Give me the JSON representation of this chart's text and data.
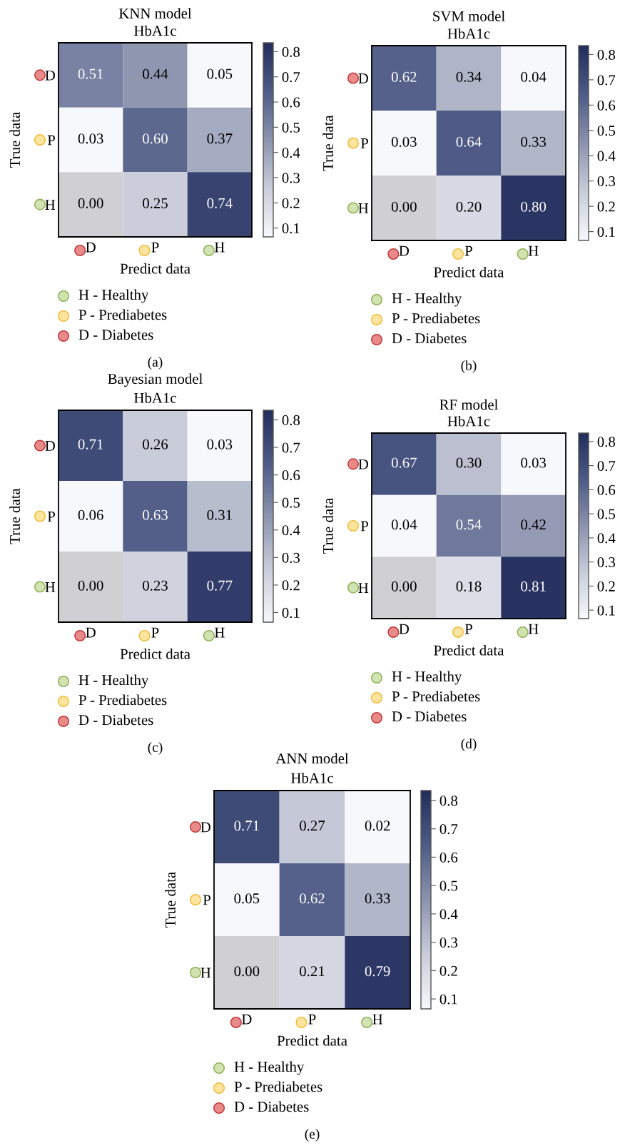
{
  "chart_data": [
    {
      "type": "heatmap",
      "title": "KNN model",
      "subtitle": "HbA1c",
      "xlabel": "Predict data",
      "ylabel": "True data",
      "categories": [
        "D",
        "P",
        "H"
      ],
      "y_categories": [
        "D",
        "P",
        "H"
      ],
      "cells": [
        [
          0.51,
          0.44,
          0.05
        ],
        [
          0.03,
          0.6,
          0.37
        ],
        [
          null,
          0.25,
          0.74
        ]
      ],
      "cell_labels": [
        [
          "0.51",
          "0.44",
          "0.05"
        ],
        [
          "0.03",
          "0.60",
          "0.37"
        ],
        [
          "0.00",
          "0.25",
          "0.74"
        ]
      ],
      "clim": [
        0.065,
        0.835
      ],
      "cticks": [
        0.1,
        0.2,
        0.3,
        0.4,
        0.5,
        0.6,
        0.7,
        0.8
      ],
      "annotations": [
        "H - Healthy",
        "P - Prediabetes",
        "D - Diabetes",
        "(a)"
      ]
    },
    {
      "type": "heatmap",
      "title": "SVM model",
      "subtitle": "HbA1c",
      "xlabel": "Predict data",
      "ylabel": "True data",
      "categories": [
        "D",
        "P",
        "H"
      ],
      "y_categories": [
        "D",
        "P",
        "H"
      ],
      "cells": [
        [
          0.62,
          0.34,
          0.04
        ],
        [
          0.03,
          0.64,
          0.33
        ],
        [
          null,
          0.2,
          0.8
        ]
      ],
      "cell_labels": [
        [
          "0.62",
          "0.34",
          "0.04"
        ],
        [
          "0.03",
          "0.64",
          "0.33"
        ],
        [
          "0.00",
          "0.20",
          "0.80"
        ]
      ],
      "clim": [
        0.065,
        0.835
      ],
      "cticks": [
        0.1,
        0.2,
        0.3,
        0.4,
        0.5,
        0.6,
        0.7,
        0.8
      ],
      "annotations": [
        "H - Healthy",
        "P - Prediabetes",
        "D - Diabetes",
        "(b)"
      ]
    },
    {
      "type": "heatmap",
      "title": "Bayesian model",
      "subtitle": "HbA1c",
      "xlabel": "Predict data",
      "ylabel": "True data",
      "categories": [
        "D",
        "P",
        "H"
      ],
      "y_categories": [
        "D",
        "P",
        "H"
      ],
      "cells": [
        [
          0.71,
          0.26,
          0.03
        ],
        [
          0.06,
          0.63,
          0.31
        ],
        [
          null,
          0.23,
          0.77
        ]
      ],
      "cell_labels": [
        [
          "0.71",
          "0.26",
          "0.03"
        ],
        [
          "0.06",
          "0.63",
          "0.31"
        ],
        [
          "0.00",
          "0.23",
          "0.77"
        ]
      ],
      "clim": [
        0.065,
        0.835
      ],
      "cticks": [
        0.1,
        0.2,
        0.3,
        0.4,
        0.5,
        0.6,
        0.7,
        0.8
      ],
      "annotations": [
        "H - Healthy",
        "P - Prediabetes",
        "D - Diabetes",
        "(c)"
      ]
    },
    {
      "type": "heatmap",
      "title": "RF model",
      "subtitle": "HbA1c",
      "xlabel": "Predict data",
      "ylabel": "True data",
      "categories": [
        "D",
        "P",
        "H"
      ],
      "y_categories": [
        "D",
        "P",
        "H"
      ],
      "cells": [
        [
          0.67,
          0.3,
          0.03
        ],
        [
          0.04,
          0.54,
          0.42
        ],
        [
          null,
          0.18,
          0.81
        ]
      ],
      "cell_labels": [
        [
          "0.67",
          "0.30",
          "0.03"
        ],
        [
          "0.04",
          "0.54",
          "0.42"
        ],
        [
          "0.00",
          "0.18",
          "0.81"
        ]
      ],
      "clim": [
        0.065,
        0.835
      ],
      "cticks": [
        0.1,
        0.2,
        0.3,
        0.4,
        0.5,
        0.6,
        0.7,
        0.8
      ],
      "annotations": [
        "H - Healthy",
        "P - Prediabetes",
        "D - Diabetes",
        "(d)"
      ]
    },
    {
      "type": "heatmap",
      "title": "ANN model",
      "subtitle": "HbA1c",
      "xlabel": "Predict data",
      "ylabel": "True data",
      "categories": [
        "D",
        "P",
        "H"
      ],
      "y_categories": [
        "D",
        "P",
        "H"
      ],
      "cells": [
        [
          0.71,
          0.27,
          0.02
        ],
        [
          0.05,
          0.62,
          0.33
        ],
        [
          null,
          0.21,
          0.79
        ]
      ],
      "cell_labels": [
        [
          "0.71",
          "0.27",
          "0.02"
        ],
        [
          "0.05",
          "0.62",
          "0.33"
        ],
        [
          "0.00",
          "0.21",
          "0.79"
        ]
      ],
      "clim": [
        0.065,
        0.835
      ],
      "cticks": [
        0.1,
        0.2,
        0.3,
        0.4,
        0.5,
        0.6,
        0.7,
        0.8
      ],
      "annotations": [
        "H - Healthy",
        "P - Prediabetes",
        "D - Diabetes",
        "(e)"
      ]
    }
  ]
}
